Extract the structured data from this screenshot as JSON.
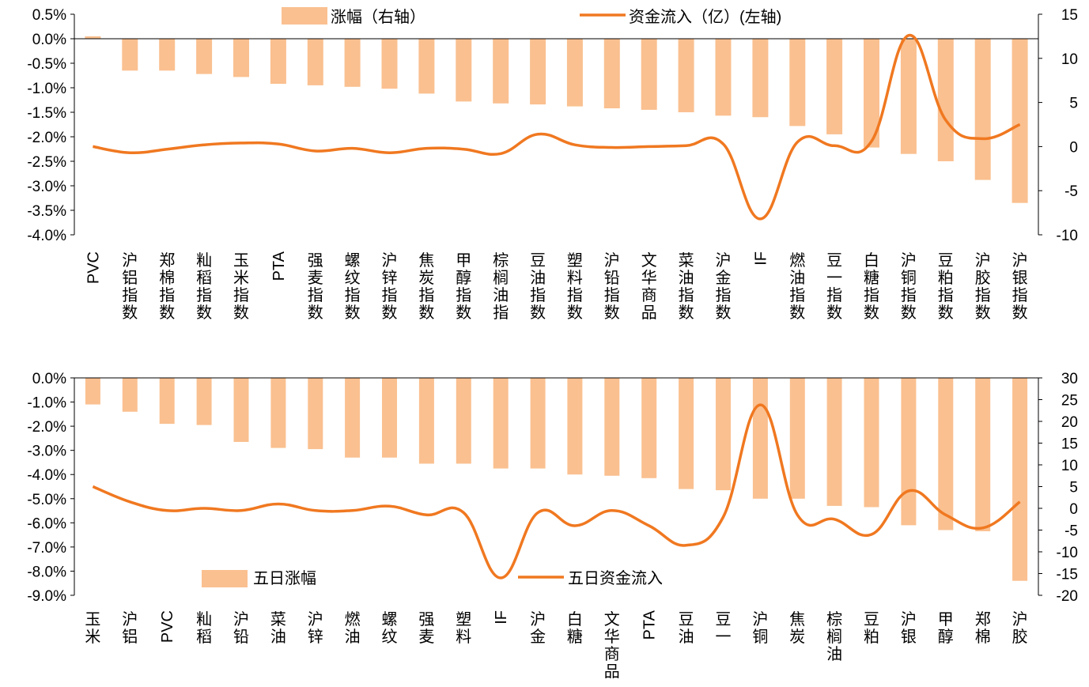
{
  "chart_data": [
    {
      "type": "bar",
      "combo": "bar+line",
      "legend_placement": "top-center",
      "grid": false,
      "categories": [
        "PVC",
        "沪铝指数",
        "郑棉指数",
        "籼稻指数",
        "玉米指数",
        "PTA",
        "强麦指数",
        "螺纹指数",
        "沪锌指数",
        "焦炭指数",
        "甲醇指数",
        "棕榈油指",
        "豆油指数",
        "塑料指数",
        "沪铅指数",
        "文华商品",
        "菜油指数",
        "沪金指数",
        "IF",
        "燃油指数",
        "豆一指数",
        "白糖指数",
        "沪铜指数",
        "豆粕指数",
        "沪胶指数",
        "沪银指数"
      ],
      "left_axis": {
        "range": [
          -4.0,
          0.5
        ],
        "ticks": [
          "0.5%",
          "0.0%",
          "-0.5%",
          "-1.0%",
          "-1.5%",
          "-2.0%",
          "-2.5%",
          "-3.0%",
          "-3.5%",
          "-4.0%"
        ]
      },
      "right_axis": {
        "range": [
          -10,
          15
        ],
        "ticks": [
          "15",
          "10",
          "5",
          "0",
          "-5",
          "-10"
        ]
      },
      "series": [
        {
          "name": "涨幅（右轴）",
          "kind": "bar",
          "axis": "left",
          "color": "#FAC090",
          "values": [
            0.05,
            -0.65,
            -0.65,
            -0.72,
            -0.78,
            -0.92,
            -0.95,
            -0.98,
            -1.02,
            -1.12,
            -1.28,
            -1.32,
            -1.34,
            -1.38,
            -1.42,
            -1.45,
            -1.5,
            -1.57,
            -1.6,
            -1.78,
            -1.95,
            -2.22,
            -2.35,
            -2.5,
            -2.88,
            -3.35
          ]
        },
        {
          "name": "资金流入（亿）(左轴)",
          "kind": "line",
          "axis": "right",
          "color": "#F07820",
          "values": [
            0.0,
            -0.7,
            -0.3,
            0.2,
            0.4,
            0.3,
            -0.5,
            -0.2,
            -0.7,
            -0.2,
            -0.3,
            -0.8,
            1.4,
            0.2,
            -0.1,
            0.0,
            0.1,
            0.3,
            -8.2,
            0.5,
            0.1,
            0.6,
            12.6,
            3.0,
            0.9,
            2.5
          ]
        }
      ]
    },
    {
      "type": "bar",
      "combo": "bar+line",
      "legend_placement": "bottom-left",
      "grid": false,
      "categories": [
        "玉米",
        "沪铝",
        "PVC",
        "籼稻",
        "沪铅",
        "菜油",
        "沪锌",
        "燃油",
        "螺纹",
        "强麦",
        "塑料",
        "IF",
        "沪金",
        "白糖",
        "文华商品",
        "PTA",
        "豆油",
        "豆一",
        "沪铜",
        "焦炭",
        "棕榈油",
        "豆粕",
        "沪银",
        "甲醇",
        "郑棉",
        "沪胶"
      ],
      "left_axis": {
        "range": [
          -9.0,
          0.0
        ],
        "ticks": [
          "0.0%",
          "-1.0%",
          "-2.0%",
          "-3.0%",
          "-4.0%",
          "-5.0%",
          "-6.0%",
          "-7.0%",
          "-8.0%",
          "-9.0%"
        ]
      },
      "right_axis": {
        "range": [
          -20,
          30
        ],
        "ticks": [
          "30",
          "25",
          "20",
          "15",
          "10",
          "5",
          "0",
          "-5",
          "-10",
          "-15",
          "-20"
        ]
      },
      "series": [
        {
          "name": "五日涨幅",
          "kind": "bar",
          "axis": "left",
          "color": "#FAC090",
          "values": [
            -1.1,
            -1.4,
            -1.9,
            -1.95,
            -2.65,
            -2.9,
            -2.95,
            -3.3,
            -3.3,
            -3.55,
            -3.55,
            -3.75,
            -3.75,
            -4.0,
            -4.05,
            -4.15,
            -4.6,
            -4.65,
            -5.0,
            -5.0,
            -5.3,
            -5.35,
            -6.1,
            -6.3,
            -6.35,
            -8.4
          ]
        },
        {
          "name": "五日资金流入",
          "kind": "line",
          "axis": "right",
          "color": "#F07820",
          "values": [
            5.0,
            1.5,
            -0.5,
            0.0,
            -0.5,
            1.0,
            -0.5,
            -0.5,
            0.5,
            -1.5,
            -1.0,
            -16.0,
            -1.0,
            -4.0,
            -0.5,
            -4.0,
            -8.5,
            -2.0,
            23.8,
            -1.5,
            -2.5,
            -6.0,
            4.0,
            -1.5,
            -4.5,
            1.5
          ]
        }
      ]
    }
  ]
}
